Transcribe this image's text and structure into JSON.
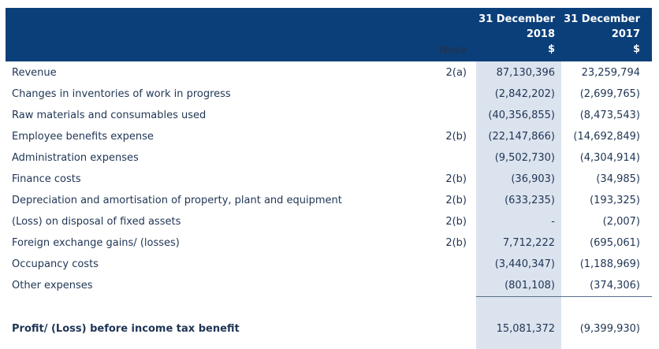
{
  "header": {
    "col_2018_line1": "31 December",
    "col_2018_line2": "2018",
    "col_2018_unit": "$",
    "col_2017_line1": "31 December",
    "col_2017_line2": "2017",
    "col_2017_unit": "$",
    "note_label": "Note"
  },
  "rows": [
    {
      "label": "Revenue",
      "note": "2(a)",
      "v2018": "87,130,396",
      "v2017": "23,259,794"
    },
    {
      "label": "Changes in inventories of work in progress",
      "note": "",
      "v2018": "(2,842,202)",
      "v2017": "(2,699,765)"
    },
    {
      "label": "Raw materials and consumables used",
      "note": "",
      "v2018": "(40,356,855)",
      "v2017": "(8,473,543)"
    },
    {
      "label": "Employee benefits expense",
      "note": "2(b)",
      "v2018": "(22,147,866)",
      "v2017": "(14,692,849)"
    },
    {
      "label": "Administration expenses",
      "note": "",
      "v2018": "(9,502,730)",
      "v2017": "(4,304,914)"
    },
    {
      "label": "Finance costs",
      "note": "2(b)",
      "v2018": "(36,903)",
      "v2017": "(34,985)"
    },
    {
      "label": "Depreciation and amortisation of property, plant and equipment",
      "note": "2(b)",
      "v2018": "(633,235)",
      "v2017": "(193,325)"
    },
    {
      "label": "(Loss) on disposal of fixed assets",
      "note": "2(b)",
      "v2018": "-",
      "v2017": "(2,007)"
    },
    {
      "label": "Foreign exchange gains/ (losses)",
      "note": "2(b)",
      "v2018": "7,712,222",
      "v2017": "(695,061)"
    },
    {
      "label": "Occupancy costs",
      "note": "",
      "v2018": "(3,440,347)",
      "v2017": "(1,188,969)"
    },
    {
      "label": "Other expenses",
      "note": "",
      "v2018": "(801,108)",
      "v2017": "(374,306)"
    }
  ],
  "total": {
    "label": "Profit/ (Loss) before income tax benefit",
    "v2018": "15,081,372",
    "v2017": "(9,399,930)"
  }
}
